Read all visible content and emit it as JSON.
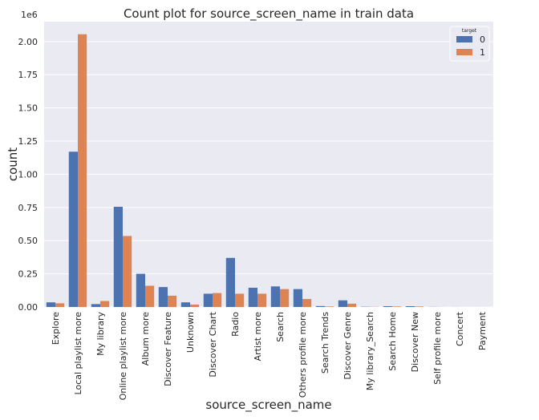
{
  "chart_data": {
    "type": "bar",
    "title": "Count plot for source_screen_name in train data",
    "xlabel": "source_screen_name",
    "ylabel": "count",
    "y_offset_label": "1e6",
    "ylim": [
      0,
      2150000
    ],
    "yticks": [
      0,
      250000,
      500000,
      750000,
      1000000,
      1250000,
      1500000,
      1750000,
      2000000
    ],
    "ytick_labels": [
      "0.00",
      "0.25",
      "0.50",
      "0.75",
      "1.00",
      "1.25",
      "1.50",
      "1.75",
      "2.00"
    ],
    "grid": true,
    "legend": {
      "title": "target",
      "placement": "top-right"
    },
    "categories": [
      "Explore",
      "Local playlist more",
      "My library",
      "Online playlist more",
      "Album more",
      "Discover Feature",
      "Unknown",
      "Discover Chart",
      "Radio",
      "Artist more",
      "Search",
      "Others profile more",
      "Search Trends",
      "Discover Genre",
      "My library_Search",
      "Search Home",
      "Discover New",
      "Self profile more",
      "Concert",
      "Payment"
    ],
    "series": [
      {
        "name": "0",
        "color": "#4c72b0",
        "values": [
          35000,
          1170000,
          22000,
          755000,
          250000,
          150000,
          35000,
          100000,
          370000,
          145000,
          155000,
          135000,
          7000,
          50000,
          2000,
          6000,
          6000,
          1000,
          500,
          300
        ]
      },
      {
        "name": "1",
        "color": "#dd8452",
        "values": [
          28000,
          2055000,
          45000,
          535000,
          160000,
          85000,
          18000,
          105000,
          100000,
          100000,
          135000,
          60000,
          4000,
          25000,
          1500,
          4000,
          4000,
          500,
          300,
          200
        ]
      }
    ]
  }
}
